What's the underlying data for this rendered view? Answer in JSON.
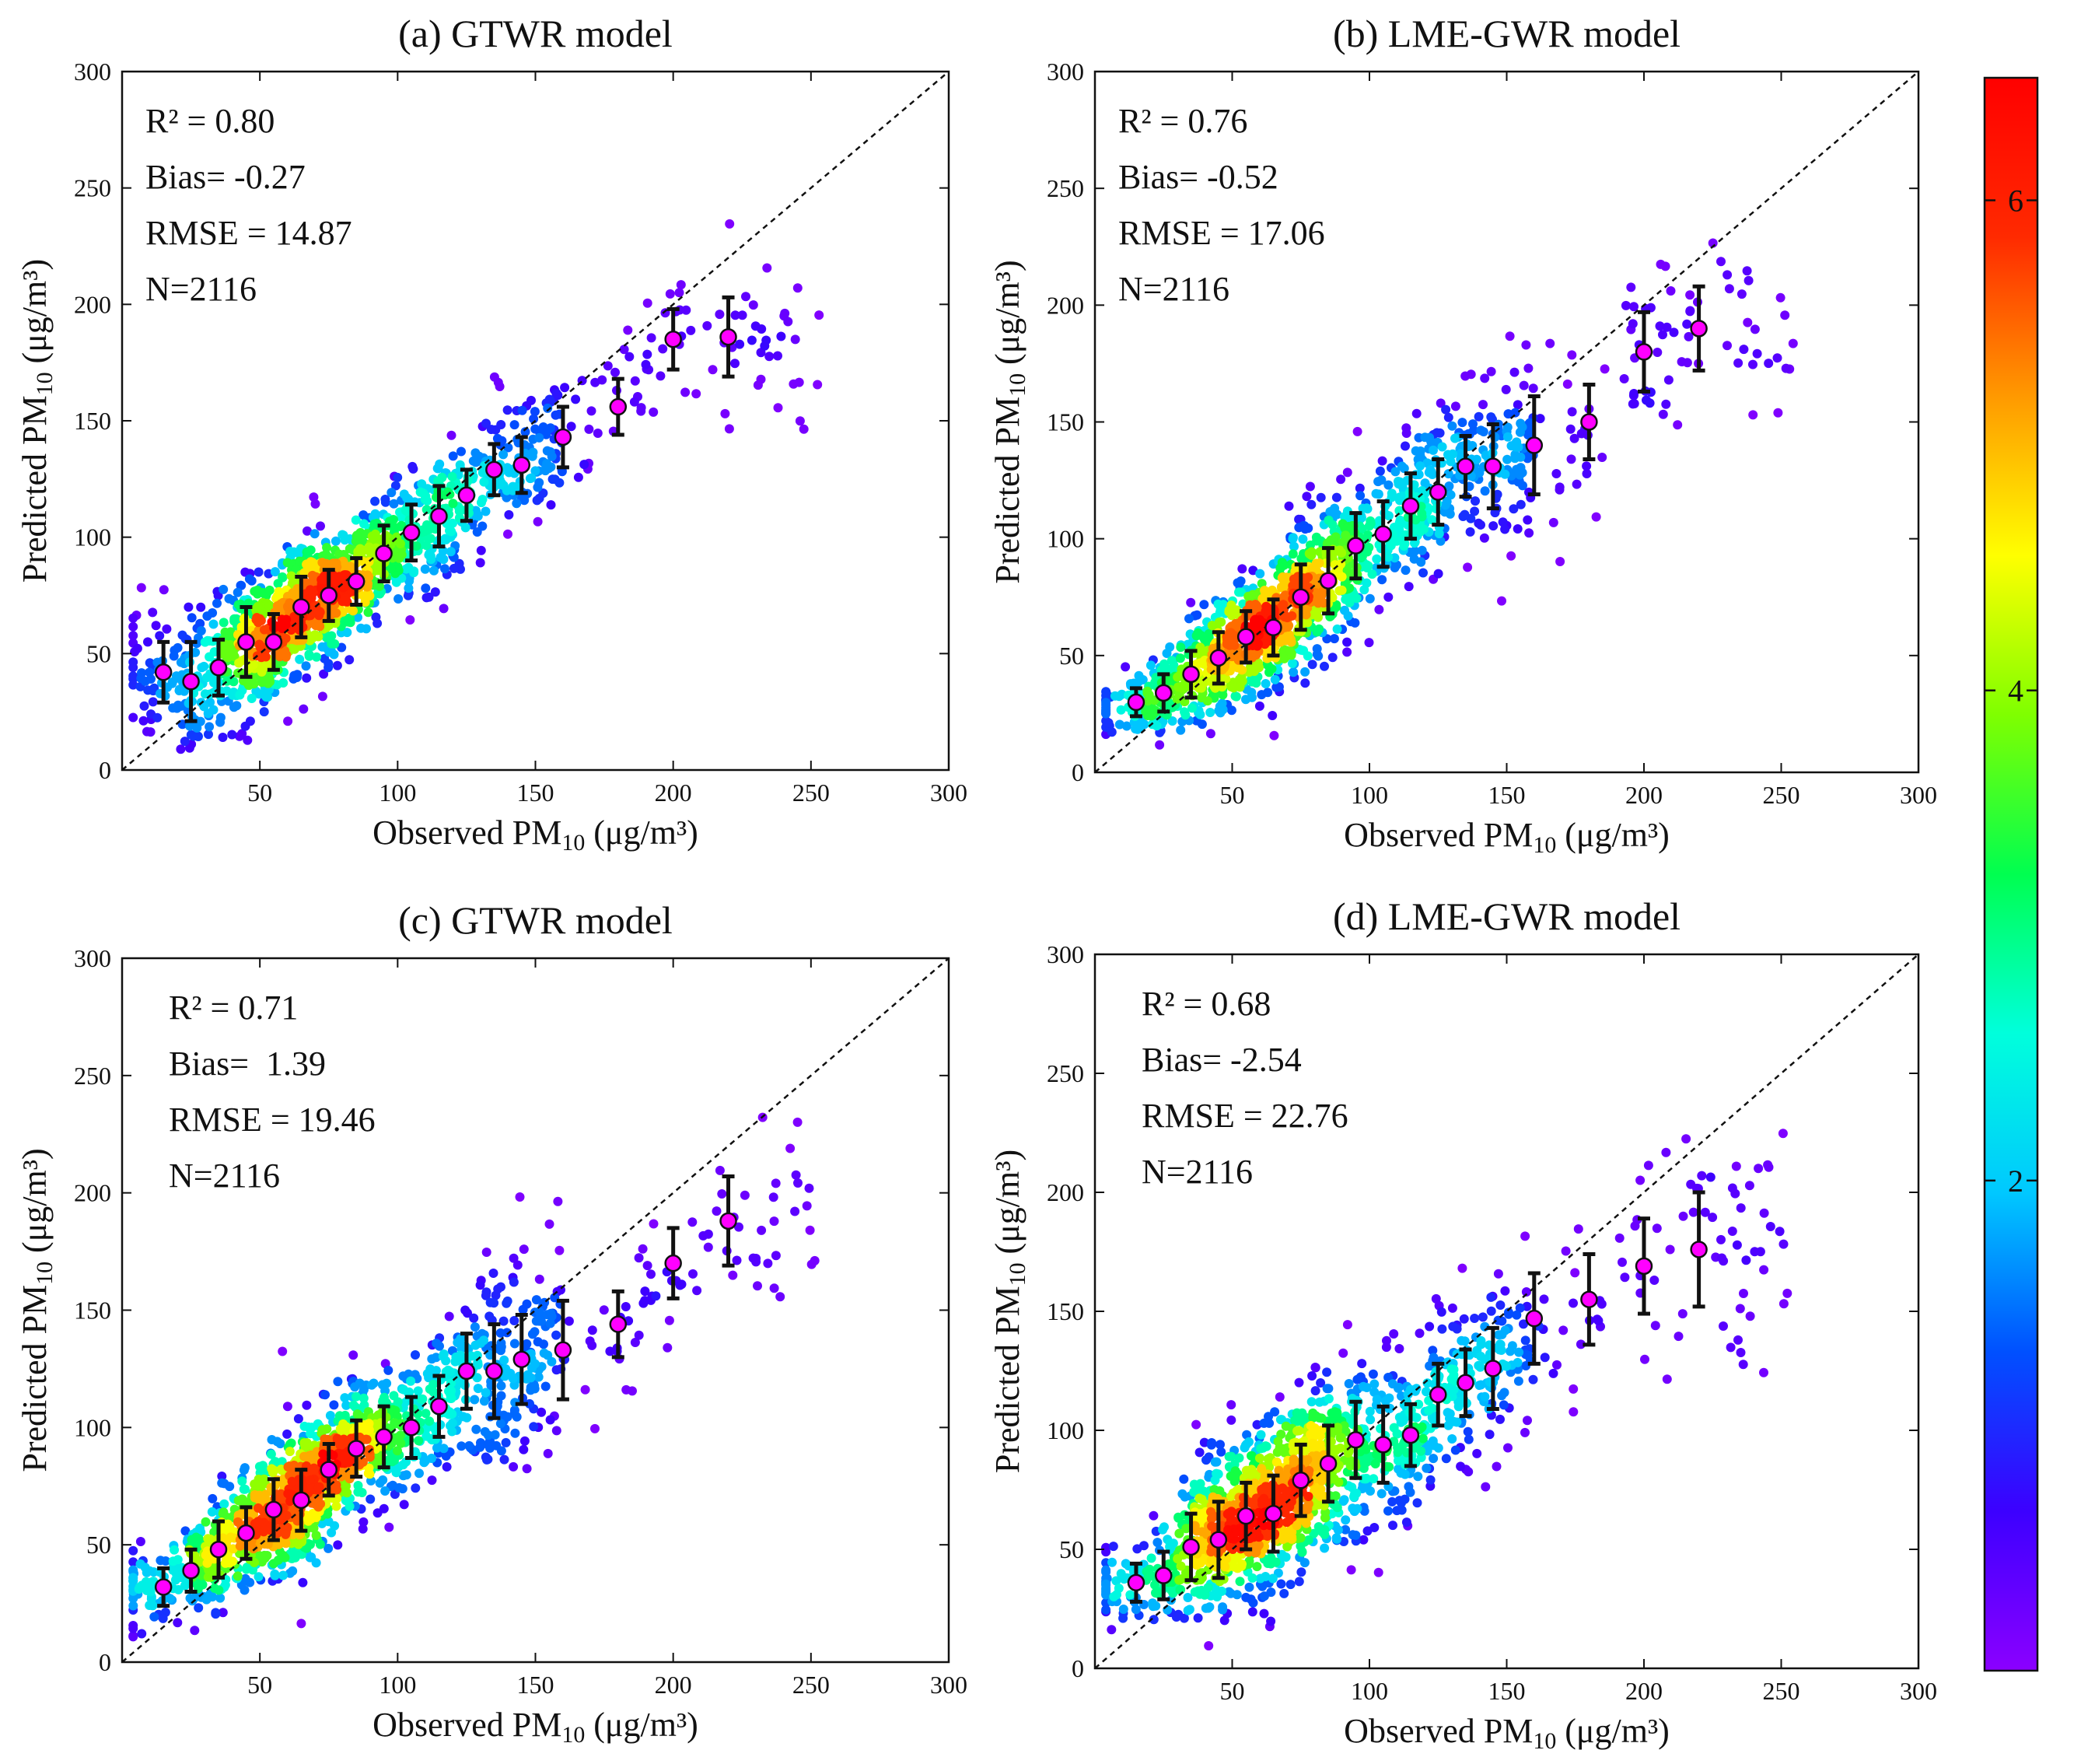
{
  "chart_data": [
    {
      "type": "scatter",
      "title": "(a) GTWR model",
      "xlabel": "Observed PM10 (μg/m³)",
      "ylabel": "Predicted PM10 (μg/m³)",
      "xlim": [
        0,
        300
      ],
      "ylim": [
        0,
        300
      ],
      "xticks": [
        50,
        100,
        150,
        200,
        250,
        300
      ],
      "yticks": [
        0,
        50,
        100,
        150,
        200,
        250,
        300
      ],
      "stats": [
        "R² = 0.80",
        "Bias= -0.27",
        "RMSE = 14.87",
        "N=2116"
      ],
      "reference_line": "1:1 dashed",
      "point_color": "density",
      "bins": {
        "x": [
          15,
          25,
          35,
          45,
          55,
          65,
          75,
          85,
          95,
          105,
          115,
          125,
          135,
          145,
          160,
          180,
          200,
          220
        ],
        "mean": [
          42,
          38,
          44,
          55,
          55,
          70,
          75,
          81,
          93,
          102,
          109,
          118,
          129,
          131,
          143,
          156,
          185,
          186
        ],
        "sd": [
          13,
          17,
          12,
          15,
          12,
          13,
          11,
          10,
          12,
          12,
          13,
          11,
          11,
          12,
          13,
          12,
          13,
          17
        ]
      }
    },
    {
      "type": "scatter",
      "title": "(b) LME-GWR model",
      "xlabel": "Observed PM10 (μg/m³)",
      "ylabel": "Predicted PM10 (μg/m³)",
      "xlim": [
        0,
        300
      ],
      "ylim": [
        0,
        300
      ],
      "xticks": [
        50,
        100,
        150,
        200,
        250,
        300
      ],
      "yticks": [
        0,
        50,
        100,
        150,
        200,
        250,
        300
      ],
      "stats": [
        "R² = 0.76",
        "Bias= -0.52",
        "RMSE = 17.06",
        "N=2116"
      ],
      "reference_line": "1:1 dashed",
      "point_color": "density",
      "bins": {
        "x": [
          15,
          25,
          35,
          45,
          55,
          65,
          75,
          85,
          95,
          105,
          115,
          125,
          135,
          145,
          160,
          180,
          200,
          220
        ],
        "mean": [
          30,
          34,
          42,
          49,
          58,
          62,
          75,
          82,
          97,
          102,
          114,
          120,
          131,
          131,
          140,
          150,
          180,
          190
        ],
        "sd": [
          6,
          8,
          10,
          11,
          11,
          12,
          14,
          14,
          14,
          14,
          14,
          14,
          13,
          18,
          21,
          16,
          17,
          18
        ]
      }
    },
    {
      "type": "scatter",
      "title": "(c) GTWR model",
      "xlabel": "Observed PM10 (μg/m³)",
      "ylabel": "Predicted PM10 (μg/m³)",
      "xlim": [
        0,
        300
      ],
      "ylim": [
        0,
        300
      ],
      "xticks": [
        50,
        100,
        150,
        200,
        250,
        300
      ],
      "yticks": [
        0,
        50,
        100,
        150,
        200,
        250,
        300
      ],
      "stats": [
        "R² = 0.71",
        "Bias=  1.39",
        "RMSE = 19.46",
        "N=2116"
      ],
      "reference_line": "1:1 dashed",
      "point_color": "density",
      "bins": {
        "x": [
          15,
          25,
          35,
          45,
          55,
          65,
          75,
          85,
          95,
          105,
          115,
          125,
          135,
          145,
          160,
          180,
          200,
          220
        ],
        "mean": [
          32,
          39,
          48,
          55,
          65,
          69,
          82,
          91,
          96,
          100,
          109,
          124,
          124,
          129,
          133,
          144,
          170,
          188
        ],
        "sd": [
          8,
          9,
          12,
          11,
          13,
          13,
          11,
          12,
          13,
          13,
          13,
          16,
          20,
          19,
          21,
          14,
          15,
          19
        ]
      }
    },
    {
      "type": "scatter",
      "title": "(d) LME-GWR model",
      "xlabel": "Observed PM10 (μg/m³)",
      "ylabel": "Predicted PM10 (μg/m³)",
      "xlim": [
        0,
        300
      ],
      "ylim": [
        0,
        300
      ],
      "xticks": [
        50,
        100,
        150,
        200,
        250,
        300
      ],
      "yticks": [
        0,
        50,
        100,
        150,
        200,
        250,
        300
      ],
      "stats": [
        "R² = 0.68",
        "Bias= -2.54",
        "RMSE = 22.76",
        "N=2116"
      ],
      "reference_line": "1:1 dashed",
      "point_color": "density",
      "bins": {
        "x": [
          15,
          25,
          35,
          45,
          55,
          65,
          75,
          85,
          95,
          105,
          115,
          125,
          135,
          145,
          160,
          180,
          200,
          220
        ],
        "mean": [
          36,
          39,
          51,
          54,
          64,
          65,
          79,
          86,
          96,
          94,
          98,
          115,
          120,
          126,
          147,
          155,
          169,
          176
        ],
        "sd": [
          8,
          10,
          14,
          16,
          14,
          16,
          15,
          16,
          16,
          16,
          13,
          13,
          14,
          17,
          19,
          19,
          20,
          24
        ]
      }
    }
  ],
  "colorbar": {
    "label_ticks": [
      "2",
      "4",
      "6"
    ],
    "tick_values": [
      2,
      4,
      6
    ],
    "range": [
      0,
      6.5
    ],
    "colors": [
      "#8b00ff",
      "#3c00ff",
      "#0050ff",
      "#00c8ff",
      "#00ffdc",
      "#00ff50",
      "#7fff00",
      "#ffff00",
      "#ff9900",
      "#ff2a00",
      "#ff0000"
    ]
  },
  "colors": {
    "mean_marker": "#ff00ff",
    "error_bar": "#111111",
    "reference_line": "#111111"
  }
}
